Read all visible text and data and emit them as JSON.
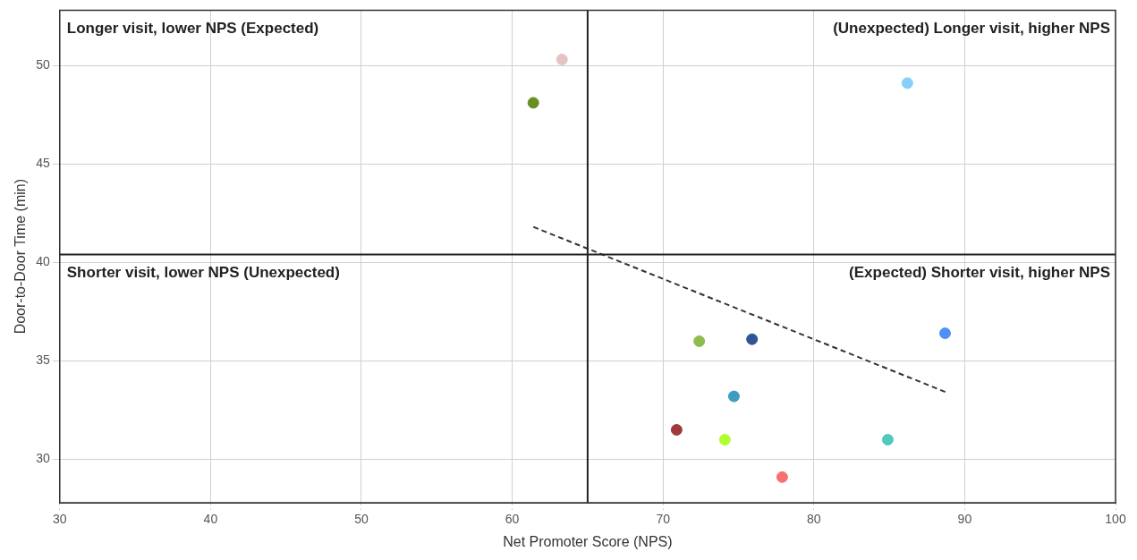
{
  "chart_data": {
    "type": "scatter",
    "xlabel": "Net Promoter Score (NPS)",
    "ylabel": "Door-to-Door Time (min)",
    "xlim": [
      30,
      100
    ],
    "xticks": [
      30,
      40,
      50,
      60,
      70,
      80,
      90,
      100
    ],
    "ylim": [
      27.8,
      52.8
    ],
    "yticks": [
      30,
      35,
      40,
      45,
      50
    ],
    "grid": true,
    "marker": "circle",
    "legend": false,
    "series": [
      {
        "x": [
          63.3,
          61.4,
          86.2,
          72.4,
          75.9,
          88.7,
          74.7,
          70.9,
          74.1,
          84.9,
          77.9
        ],
        "values": [
          50.3,
          48.1,
          49.1,
          36.0,
          36.1,
          36.4,
          33.2,
          31.5,
          31.0,
          31.0,
          29.1
        ],
        "colors": [
          "#e6c3c3",
          "#6b8e23",
          "#87cefa",
          "#8fbc4f",
          "#2f5597",
          "#4f8ff7",
          "#3b9cc4",
          "#a0393b",
          "#adff2f",
          "#4ec9c0",
          "#f87171"
        ]
      },
      {
        "type": "line",
        "x": [
          61.4,
          88.8
        ],
        "values": [
          41.8,
          33.4
        ],
        "color": "#333333",
        "line_style": "dashed",
        "marker": "none"
      }
    ],
    "ref_lines": [
      {
        "axis": "x",
        "value": 65,
        "color": "#222222"
      },
      {
        "axis": "y",
        "value": 40.4,
        "color": "#222222"
      }
    ],
    "annotations": [
      "Longer visit, lower NPS (Expected)",
      "(Unexpected) Longer visit, higher NPS",
      "Shorter visit, lower NPS (Unexpected)",
      "(Expected) Shorter visit, higher NPS"
    ]
  }
}
